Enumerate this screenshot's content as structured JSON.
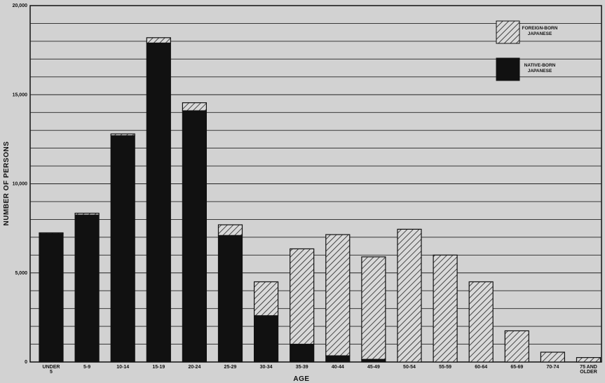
{
  "chart_data": {
    "type": "bar",
    "stacked": true,
    "title": "",
    "xlabel": "AGE",
    "ylabel": "NUMBER OF PERSONS",
    "ylim": [
      0,
      20000
    ],
    "yticks": [
      0,
      5000,
      10000,
      15000,
      20000
    ],
    "ytick_labels": [
      "0",
      "5,000",
      "10,000",
      "15,000",
      "20,000"
    ],
    "grid": true,
    "legend_position": "top-right",
    "categories": [
      [
        "UNDER",
        "5"
      ],
      [
        "5-9"
      ],
      [
        "10-14"
      ],
      [
        "15-19"
      ],
      [
        "20-24"
      ],
      [
        "25-29"
      ],
      [
        "30-34"
      ],
      [
        "35-39"
      ],
      [
        "40-44"
      ],
      [
        "45-49"
      ],
      [
        "50-54"
      ],
      [
        "55-59"
      ],
      [
        "60-64"
      ],
      [
        "65-69"
      ],
      [
        "70-74"
      ],
      [
        "75 AND",
        "OLDER"
      ]
    ],
    "series": [
      {
        "name": "NATIVE-BORN JAPANESE",
        "color": "#111111",
        "pattern": "solid",
        "values": [
          7200,
          8250,
          12700,
          17900,
          14100,
          7100,
          2600,
          1000,
          350,
          150,
          0,
          0,
          0,
          0,
          0,
          0
        ]
      },
      {
        "name": "FOREIGN-BORN JAPANESE",
        "color": "#111111",
        "pattern": "diagonal-hatch",
        "values": [
          50,
          100,
          100,
          300,
          450,
          600,
          1900,
          5350,
          6800,
          5750,
          7450,
          6000,
          4500,
          1750,
          550,
          250
        ]
      }
    ],
    "legend": [
      {
        "label_lines": [
          "FOREIGN-BORN",
          "JAPANESE"
        ],
        "pattern": "diagonal-hatch"
      },
      {
        "label_lines": [
          "NATIVE-BORN",
          "JAPANESE"
        ],
        "pattern": "solid"
      }
    ]
  }
}
